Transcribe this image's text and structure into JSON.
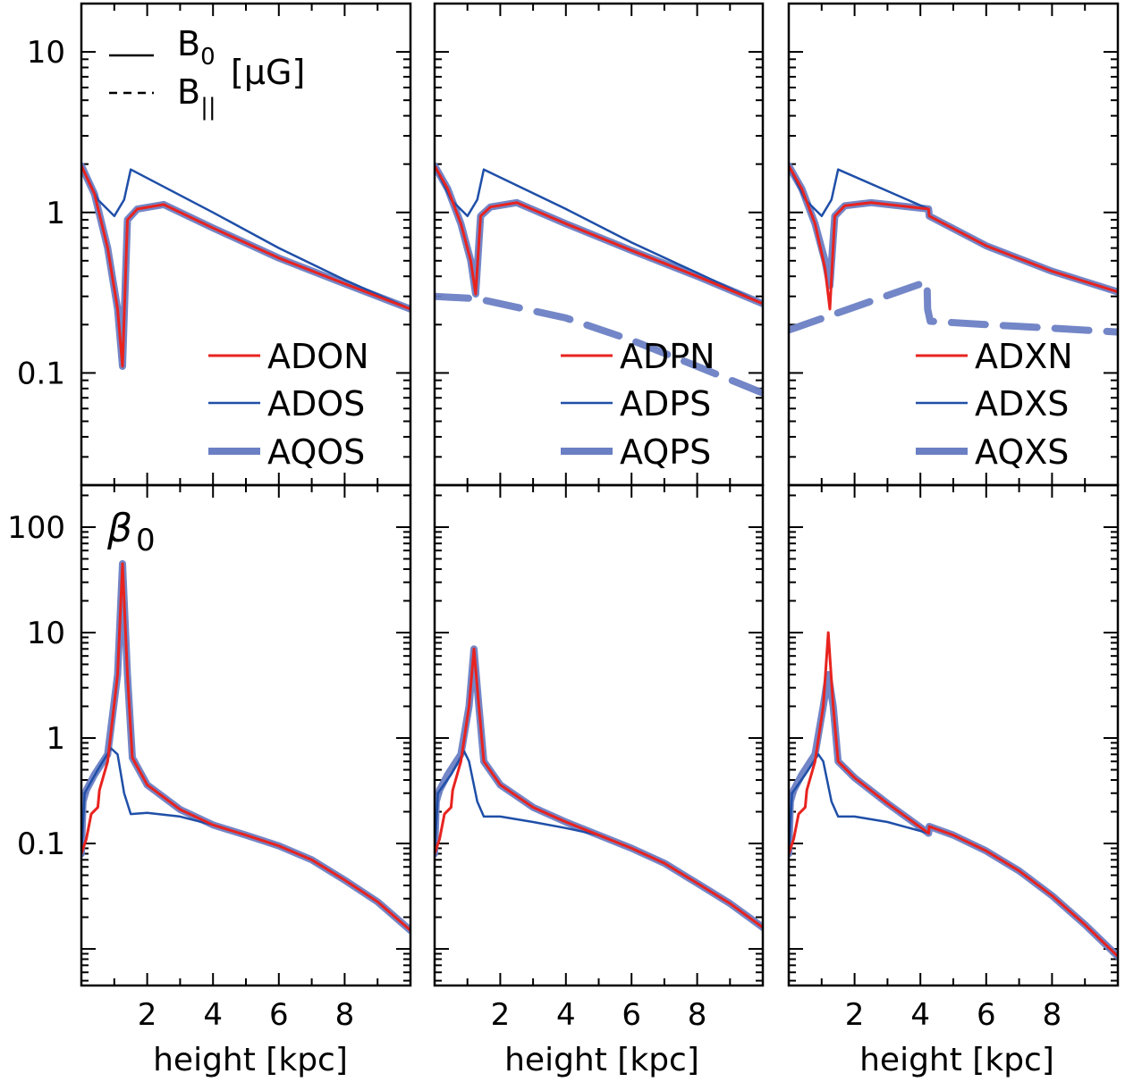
{
  "figure": {
    "xlabel": "height [kpc]",
    "row1_label": {
      "b0": "B",
      "b0_sub": "0",
      "bpar": "B",
      "bpar_sub": "||",
      "unit": "[μG]"
    },
    "row2_label": {
      "symbol": "β",
      "sub": "0"
    }
  },
  "colors": {
    "red": "#e8231f",
    "blue": "#1f4fa8",
    "thick": "#6b7fc4"
  },
  "chart_data": [
    {
      "type": "line",
      "panel": "B-ADO",
      "yscale": "log",
      "xlim": [
        0,
        10
      ],
      "ylim": [
        0.02,
        20
      ],
      "xticks": [
        2,
        4,
        6,
        8
      ],
      "yticks": [
        0.1,
        1,
        10
      ],
      "ytick_labels": [
        "0.1",
        "1",
        "10"
      ],
      "legend": [
        "ADON",
        "ADOS",
        "AQOS"
      ],
      "series": [
        {
          "name": "ADON",
          "style": "red",
          "x": [
            0,
            0.4,
            0.8,
            1.1,
            1.25,
            1.4,
            1.7,
            2.5,
            4,
            6,
            8,
            10
          ],
          "y": [
            1.95,
            1.3,
            0.6,
            0.25,
            0.11,
            0.9,
            1.05,
            1.12,
            0.8,
            0.52,
            0.36,
            0.25
          ]
        },
        {
          "name": "ADOS",
          "style": "blue",
          "x": [
            0,
            0.5,
            1.0,
            1.3,
            1.5,
            4,
            6,
            8,
            10
          ],
          "y": [
            1.95,
            1.2,
            0.95,
            1.2,
            1.85,
            1.0,
            0.6,
            0.38,
            0.25
          ]
        },
        {
          "name": "AQOS",
          "style": "thick",
          "x": [
            0,
            0.4,
            0.8,
            1.1,
            1.25,
            1.4,
            1.7,
            2.5,
            4,
            6,
            8,
            10
          ],
          "y": [
            1.95,
            1.3,
            0.6,
            0.25,
            0.11,
            0.9,
            1.05,
            1.12,
            0.8,
            0.52,
            0.36,
            0.25
          ]
        }
      ]
    },
    {
      "type": "line",
      "panel": "B-ADP",
      "yscale": "log",
      "xlim": [
        0,
        10
      ],
      "ylim": [
        0.02,
        20
      ],
      "xticks": [
        2,
        4,
        6,
        8
      ],
      "yticks": [
        0.1,
        1,
        10
      ],
      "ytick_labels": [],
      "legend": [
        "ADPN",
        "ADPS",
        "AQPS"
      ],
      "series": [
        {
          "name": "ADPN",
          "style": "red",
          "x": [
            0,
            0.4,
            0.8,
            1.1,
            1.25,
            1.4,
            1.7,
            2.5,
            4,
            6,
            8,
            10
          ],
          "y": [
            1.95,
            1.4,
            0.85,
            0.5,
            0.31,
            0.95,
            1.08,
            1.15,
            0.85,
            0.58,
            0.4,
            0.27
          ]
        },
        {
          "name": "ADPS",
          "style": "blue",
          "x": [
            0,
            0.5,
            1.0,
            1.3,
            1.5,
            4,
            6,
            8,
            10
          ],
          "y": [
            1.95,
            1.2,
            0.95,
            1.2,
            1.85,
            1.05,
            0.65,
            0.42,
            0.27
          ]
        },
        {
          "name": "AQPS",
          "style": "thick",
          "x": [
            0,
            0.4,
            0.8,
            1.1,
            1.25,
            1.4,
            1.7,
            2.5,
            4,
            6,
            8,
            10
          ],
          "y": [
            1.95,
            1.4,
            0.85,
            0.5,
            0.31,
            0.95,
            1.08,
            1.15,
            0.85,
            0.58,
            0.4,
            0.27
          ]
        },
        {
          "name": "B∥",
          "style": "dashed",
          "x": [
            0,
            1.3,
            4,
            6,
            8,
            10
          ],
          "y": [
            0.3,
            0.29,
            0.22,
            0.16,
            0.11,
            0.075
          ]
        }
      ]
    },
    {
      "type": "line",
      "panel": "B-ADX",
      "yscale": "log",
      "xlim": [
        0,
        10
      ],
      "ylim": [
        0.02,
        20
      ],
      "xticks": [
        2,
        4,
        6,
        8
      ],
      "yticks": [
        0.1,
        1,
        10
      ],
      "ytick_labels": [],
      "legend": [
        "ADXN",
        "ADXS",
        "AQXS"
      ],
      "series": [
        {
          "name": "ADXN",
          "style": "red",
          "x": [
            0,
            0.4,
            0.8,
            1.1,
            1.25,
            1.4,
            1.7,
            2.5,
            4.25,
            4.27,
            6,
            8,
            10
          ],
          "y": [
            1.95,
            1.4,
            0.85,
            0.45,
            0.25,
            0.95,
            1.1,
            1.15,
            1.05,
            0.95,
            0.62,
            0.43,
            0.32
          ]
        },
        {
          "name": "ADXS",
          "style": "blue",
          "x": [
            0,
            0.5,
            1.0,
            1.3,
            1.5,
            4.25,
            4.27,
            6,
            8,
            10
          ],
          "y": [
            1.95,
            1.2,
            0.95,
            1.2,
            1.85,
            1.05,
            0.95,
            0.62,
            0.43,
            0.32
          ]
        },
        {
          "name": "AQXS",
          "style": "thick",
          "x": [
            0,
            0.4,
            0.8,
            1.1,
            1.25,
            1.4,
            1.7,
            2.5,
            4.25,
            4.27,
            6,
            8,
            10
          ],
          "y": [
            1.95,
            1.4,
            0.85,
            0.5,
            0.35,
            0.95,
            1.1,
            1.15,
            1.05,
            0.95,
            0.62,
            0.43,
            0.32
          ]
        },
        {
          "name": "B∥",
          "style": "dashed",
          "x": [
            0,
            4.2,
            4.22,
            4.3,
            6,
            8,
            10
          ],
          "y": [
            0.185,
            0.37,
            0.25,
            0.21,
            0.2,
            0.19,
            0.18
          ]
        }
      ]
    },
    {
      "type": "line",
      "panel": "beta-ADO",
      "yscale": "log",
      "xlim": [
        0,
        10
      ],
      "ylim": [
        0.0045,
        250
      ],
      "xticks": [
        2,
        4,
        6,
        8
      ],
      "xtick_labels": [
        "2",
        "4",
        "6",
        "8"
      ],
      "yticks": [
        0.1,
        1,
        10,
        100
      ],
      "ytick_labels": [
        "0.1",
        "1",
        "10",
        "100"
      ],
      "series": [
        {
          "name": "ADON",
          "style": "red",
          "x": [
            0,
            0.15,
            0.3,
            0.5,
            0.55,
            0.8,
            1.1,
            1.25,
            1.4,
            1.55,
            2,
            3,
            4,
            5,
            6,
            7,
            8,
            9,
            10
          ],
          "y": [
            0.08,
            0.11,
            0.19,
            0.22,
            0.32,
            0.6,
            4,
            45,
            4,
            0.65,
            0.36,
            0.21,
            0.15,
            0.12,
            0.095,
            0.07,
            0.045,
            0.028,
            0.015
          ]
        },
        {
          "name": "ADOS",
          "style": "blue",
          "x": [
            0,
            0.1,
            0.5,
            0.9,
            1.1,
            1.3,
            1.5,
            2,
            3,
            4,
            5,
            6,
            7,
            8,
            9,
            10
          ],
          "y": [
            0.08,
            0.3,
            0.5,
            0.8,
            0.7,
            0.3,
            0.19,
            0.195,
            0.18,
            0.15,
            0.12,
            0.095,
            0.07,
            0.045,
            0.028,
            0.015
          ]
        },
        {
          "name": "AQOS",
          "style": "thick",
          "x": [
            0,
            0.05,
            0.15,
            0.4,
            0.8,
            1.1,
            1.25,
            1.4,
            1.55,
            2,
            3,
            4,
            5,
            6,
            7,
            8,
            9,
            10
          ],
          "y": [
            0.08,
            0.25,
            0.32,
            0.45,
            0.7,
            4,
            45,
            4,
            0.65,
            0.36,
            0.21,
            0.15,
            0.12,
            0.095,
            0.07,
            0.045,
            0.028,
            0.015
          ]
        }
      ]
    },
    {
      "type": "line",
      "panel": "beta-ADP",
      "yscale": "log",
      "xlim": [
        0,
        10
      ],
      "ylim": [
        0.0045,
        250
      ],
      "xticks": [
        2,
        4,
        6,
        8
      ],
      "xtick_labels": [
        "2",
        "4",
        "6",
        "8"
      ],
      "yticks": [
        0.1,
        1,
        10,
        100
      ],
      "ytick_labels": [],
      "series": [
        {
          "name": "ADPN",
          "style": "red",
          "x": [
            0,
            0.15,
            0.3,
            0.5,
            0.55,
            0.8,
            1.05,
            1.2,
            1.35,
            1.5,
            2,
            3,
            4,
            5,
            6,
            7,
            8,
            9,
            10
          ],
          "y": [
            0.08,
            0.11,
            0.19,
            0.22,
            0.32,
            0.6,
            2,
            7,
            2,
            0.6,
            0.36,
            0.22,
            0.16,
            0.12,
            0.09,
            0.065,
            0.042,
            0.027,
            0.016
          ]
        },
        {
          "name": "ADPS",
          "style": "blue",
          "x": [
            0,
            0.1,
            0.5,
            0.9,
            1.05,
            1.3,
            1.5,
            2,
            3,
            4,
            5,
            6,
            7,
            8,
            9,
            10
          ],
          "y": [
            0.08,
            0.3,
            0.45,
            0.75,
            0.6,
            0.25,
            0.18,
            0.18,
            0.16,
            0.14,
            0.12,
            0.09,
            0.065,
            0.042,
            0.027,
            0.016
          ]
        },
        {
          "name": "AQPS",
          "style": "thick",
          "x": [
            0,
            0.05,
            0.15,
            0.4,
            0.8,
            1.05,
            1.2,
            1.35,
            1.5,
            2,
            3,
            4,
            5,
            6,
            7,
            8,
            9,
            10
          ],
          "y": [
            0.08,
            0.25,
            0.32,
            0.45,
            0.7,
            2,
            7,
            2,
            0.6,
            0.36,
            0.22,
            0.16,
            0.12,
            0.09,
            0.065,
            0.042,
            0.027,
            0.016
          ]
        }
      ]
    },
    {
      "type": "line",
      "panel": "beta-ADX",
      "yscale": "log",
      "xlim": [
        0,
        10
      ],
      "ylim": [
        0.0045,
        250
      ],
      "xticks": [
        2,
        4,
        6,
        8
      ],
      "xtick_labels": [
        "2",
        "4",
        "6",
        "8"
      ],
      "yticks": [
        0.1,
        1,
        10,
        100
      ],
      "ytick_labels": [],
      "series": [
        {
          "name": "ADXN",
          "style": "red",
          "x": [
            0,
            0.15,
            0.3,
            0.5,
            0.55,
            0.8,
            1.05,
            1.2,
            1.35,
            1.5,
            2,
            3,
            4.25,
            4.27,
            5,
            6,
            7,
            8,
            9,
            10
          ],
          "y": [
            0.08,
            0.11,
            0.19,
            0.22,
            0.32,
            0.6,
            2,
            10,
            2,
            0.6,
            0.42,
            0.24,
            0.125,
            0.145,
            0.12,
            0.085,
            0.055,
            0.032,
            0.017,
            0.0085
          ]
        },
        {
          "name": "ADXS",
          "style": "blue",
          "x": [
            0,
            0.1,
            0.5,
            0.9,
            1.05,
            1.3,
            1.5,
            2,
            3,
            4.25,
            4.27,
            5,
            6,
            7,
            8,
            9,
            10
          ],
          "y": [
            0.08,
            0.3,
            0.45,
            0.7,
            0.6,
            0.25,
            0.18,
            0.18,
            0.16,
            0.125,
            0.145,
            0.12,
            0.085,
            0.055,
            0.032,
            0.017,
            0.0085
          ]
        },
        {
          "name": "AQXS",
          "style": "thick",
          "x": [
            0,
            0.05,
            0.15,
            0.4,
            0.8,
            1.05,
            1.2,
            1.35,
            1.5,
            2,
            3,
            4.25,
            4.27,
            5,
            6,
            7,
            8,
            9,
            10
          ],
          "y": [
            0.08,
            0.25,
            0.32,
            0.45,
            0.7,
            2,
            4,
            2,
            0.6,
            0.42,
            0.24,
            0.125,
            0.145,
            0.12,
            0.085,
            0.055,
            0.032,
            0.017,
            0.0085
          ]
        }
      ]
    }
  ]
}
